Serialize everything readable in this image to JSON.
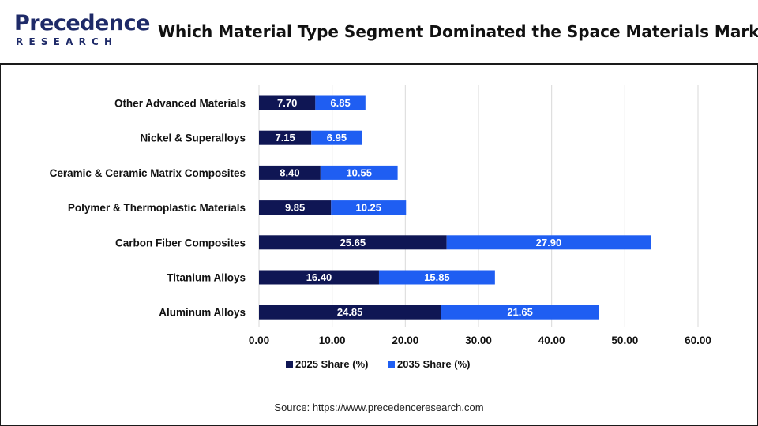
{
  "header": {
    "logo_main": "Precedence",
    "logo_sub": "RESEARCH",
    "title": "Which Material Type Segment Dominated the Space Materials Market"
  },
  "colors": {
    "series_2025": "#0f1654",
    "series_2035": "#1f5ef2",
    "grid": "#d9d9d9"
  },
  "chart_data": {
    "type": "bar",
    "orientation": "horizontal",
    "stacked": true,
    "categories": [
      "Other Advanced Materials",
      "Nickel & Superalloys",
      "Ceramic & Ceramic Matrix Composites",
      "Polymer & Thermoplastic Materials",
      "Carbon Fiber Composites",
      "Titanium Alloys",
      "Aluminum Alloys"
    ],
    "series": [
      {
        "name": "2025 Share (%)",
        "values": [
          7.7,
          7.15,
          8.4,
          9.85,
          25.65,
          16.4,
          24.85
        ]
      },
      {
        "name": "2035 Share (%)",
        "values": [
          6.85,
          6.95,
          10.55,
          10.25,
          27.9,
          15.85,
          21.65
        ]
      }
    ],
    "xlim": [
      0,
      60
    ],
    "xticks": [
      "0.00",
      "10.00",
      "20.00",
      "30.00",
      "40.00",
      "50.00",
      "60.00"
    ],
    "grid": true,
    "legend_position": "bottom-center"
  },
  "footer": {
    "source": "Source: https://www.precedenceresearch.com"
  }
}
